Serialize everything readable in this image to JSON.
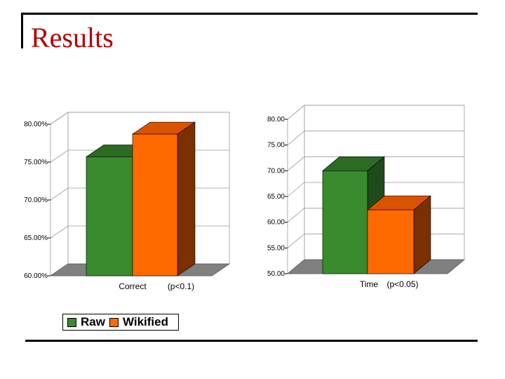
{
  "slide": {
    "title": "Results"
  },
  "legend": [
    {
      "label": "Raw",
      "color": "#3a8a2e"
    },
    {
      "label": "Wikified",
      "color": "#ff6a00"
    }
  ],
  "chart_data": [
    {
      "type": "bar",
      "categories": [
        "Correct"
      ],
      "note": "(p<0.1)",
      "series": [
        {
          "name": "Raw",
          "values": [
            75.7
          ]
        },
        {
          "name": "Wikified",
          "values": [
            78.7
          ]
        }
      ],
      "ylim": [
        60,
        80
      ],
      "yticks": [
        "60.00%",
        "65.00%",
        "70.00%",
        "75.00%",
        "80.00%"
      ]
    },
    {
      "type": "bar",
      "categories": [
        "Time"
      ],
      "note": "(p<0.05)",
      "series": [
        {
          "name": "Raw",
          "values": [
            70.0
          ]
        },
        {
          "name": "Wikified",
          "values": [
            62.4
          ]
        }
      ],
      "ylim": [
        50,
        80
      ],
      "yticks": [
        "50.00",
        "55.00",
        "60.00",
        "65.00",
        "70.00",
        "75.00",
        "80.00"
      ]
    }
  ],
  "colors": {
    "raw_front": "#3a8a2e",
    "raw_top": "#2c6b24",
    "raw_side": "#1f4a1a",
    "wik_front": "#ff6a00",
    "wik_top": "#d95300",
    "wik_side": "#7a3000",
    "floor": "#808080",
    "title": "#b30000"
  }
}
